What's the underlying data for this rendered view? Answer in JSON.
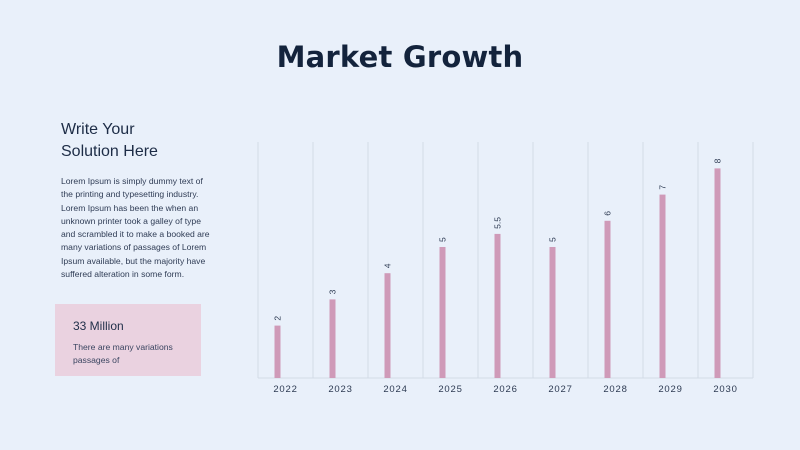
{
  "slide": {
    "title": "Market Growth",
    "heading_line1": "Write Your",
    "heading_line2": "Solution Here",
    "body": "Lorem Ipsum is simply dummy text of the printing and typesetting industry. Lorem Ipsum has been the when an unknown printer took a galley of type and scrambled it to make a booked are many variations of passages of Lorem Ipsum available, but the majority have suffered alteration in some form.",
    "stat_value": "33 Million",
    "stat_desc": "There are many variations passages of"
  },
  "colors": {
    "background": "#e9f0fa",
    "bar": "#cf9ab8",
    "grid": "#d3dbe7",
    "title": "#13233c",
    "stat_box": "#ead2e0"
  },
  "chart_data": {
    "type": "bar",
    "categories": [
      "2022",
      "2023",
      "2024",
      "2025",
      "2026",
      "2027",
      "2028",
      "2029",
      "2030"
    ],
    "values": [
      2,
      3,
      4,
      5,
      5.5,
      5,
      6,
      7,
      8
    ],
    "value_labels": [
      "2",
      "3",
      "4",
      "5",
      "5.5",
      "5",
      "6",
      "7",
      "8"
    ],
    "title": "",
    "xlabel": "",
    "ylabel": "",
    "ylim": [
      0,
      9
    ],
    "grid": "vertical",
    "legend": "none",
    "data_labels": "rotated above bars"
  }
}
